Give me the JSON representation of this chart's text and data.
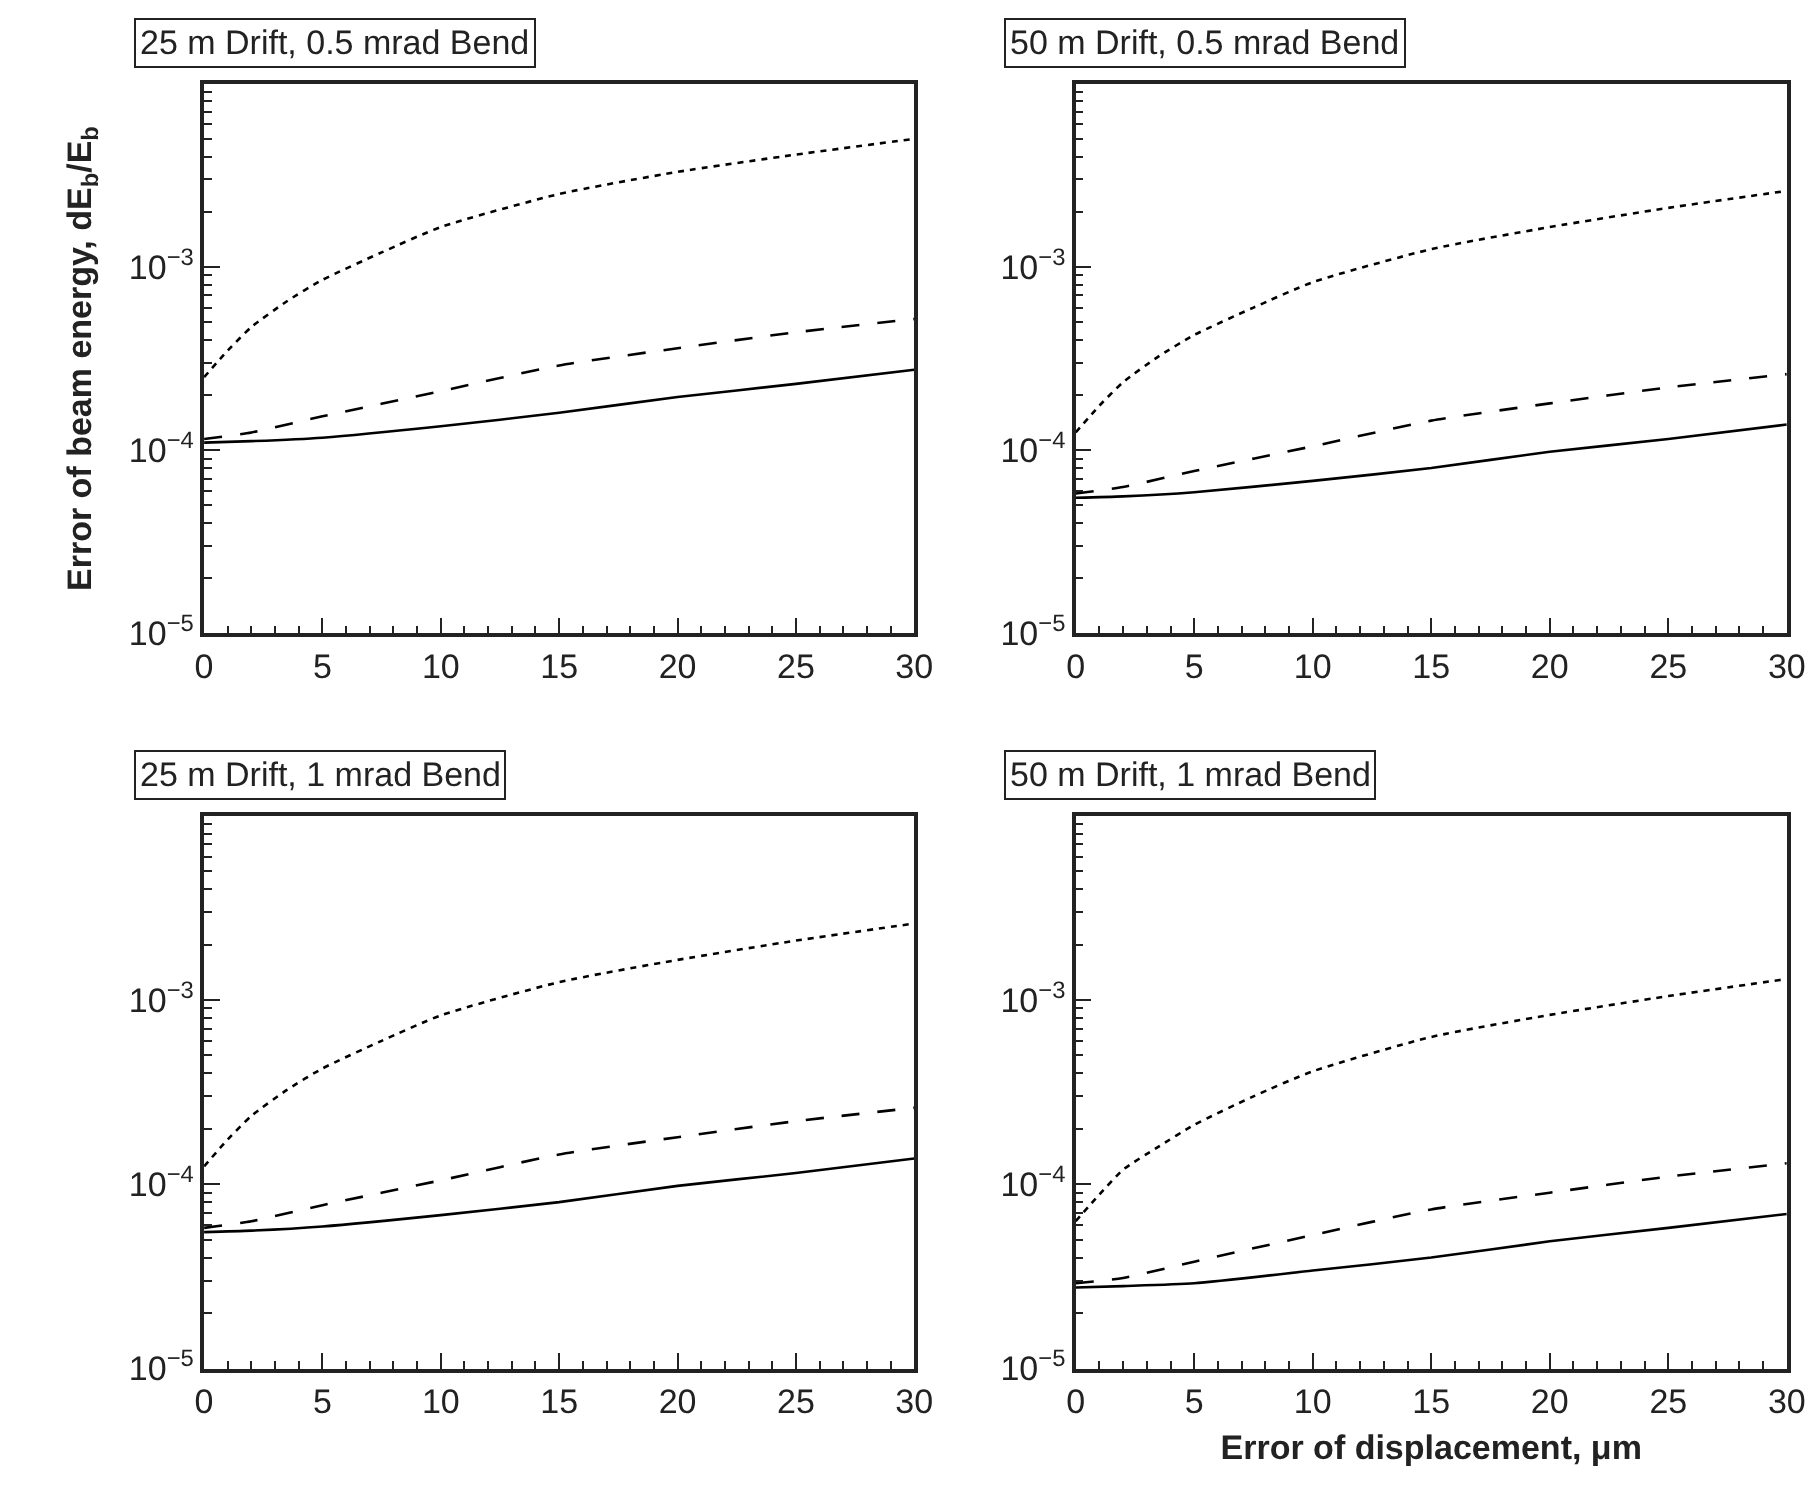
{
  "chart_data": [
    {
      "type": "line",
      "title": "25 m Drift, 0.5 mrad Bend",
      "ylabel": "Error of beam energy, dE$_{b}$/E$_{b}$",
      "log": "y",
      "marker": "none",
      "xlim": [
        0,
        30
      ],
      "ylim": [
        1e-05,
        0.01
      ],
      "xticks": [
        0,
        5,
        10,
        15,
        20,
        25,
        30
      ],
      "yticks": [
        {
          "value": 1e-05,
          "label": "10$^{−5}$"
        },
        {
          "value": 0.0001,
          "label": "10$^{−4}$"
        },
        {
          "value": 0.001,
          "label": "10$^{−3}$"
        }
      ],
      "series": [
        {
          "color": "#000000",
          "line_style": "dotted",
          "x": [
            0,
            1,
            2,
            3.5,
            5,
            7.5,
            10,
            15,
            20,
            25,
            30
          ],
          "values": [
            0.00025,
            0.00035,
            0.00047,
            0.00065,
            0.00085,
            0.0012,
            0.00165,
            0.0025,
            0.0033,
            0.0041,
            0.005
          ]
        },
        {
          "color": "#000000",
          "line_style": "dashed",
          "x": [
            0,
            2,
            5,
            10,
            15,
            20,
            25,
            30
          ],
          "values": [
            0.000115,
            0.000125,
            0.000153,
            0.00021,
            0.00029,
            0.00036,
            0.00044,
            0.00052
          ]
        },
        {
          "color": "#000000",
          "line_style": "solid",
          "x": [
            0,
            2,
            5,
            10,
            15,
            20,
            25,
            30
          ],
          "values": [
            0.00011,
            0.000112,
            0.000117,
            0.000135,
            0.00016,
            0.000195,
            0.00023,
            0.000275
          ]
        }
      ]
    },
    {
      "type": "line",
      "title": "50 m Drift, 0.5 mrad Bend",
      "log": "y",
      "marker": "none",
      "xlim": [
        0,
        30
      ],
      "ylim": [
        1e-05,
        0.01
      ],
      "xticks": [
        0,
        5,
        10,
        15,
        20,
        25,
        30
      ],
      "yticks": [
        {
          "value": 1e-05,
          "label": "10$^{−5}$"
        },
        {
          "value": 0.0001,
          "label": "10$^{−4}$"
        },
        {
          "value": 0.001,
          "label": "10$^{−3}$"
        }
      ],
      "series": [
        {
          "color": "#000000",
          "line_style": "dotted",
          "x": [
            0,
            1,
            2,
            3.5,
            5,
            7.5,
            10,
            15,
            20,
            25,
            30
          ],
          "values": [
            0.000125,
            0.000175,
            0.000235,
            0.000325,
            0.000425,
            0.0006,
            0.000825,
            0.00125,
            0.00165,
            0.0021,
            0.0026
          ]
        },
        {
          "color": "#000000",
          "line_style": "dashed",
          "x": [
            0,
            2,
            5,
            10,
            15,
            20,
            25,
            30
          ],
          "values": [
            5.8e-05,
            6.3e-05,
            7.7e-05,
            0.000105,
            0.000145,
            0.00018,
            0.00022,
            0.00026
          ]
        },
        {
          "color": "#000000",
          "line_style": "solid",
          "x": [
            0,
            2,
            5,
            10,
            15,
            20,
            25,
            30
          ],
          "values": [
            5.5e-05,
            5.6e-05,
            5.9e-05,
            6.8e-05,
            8e-05,
            9.8e-05,
            0.000115,
            0.000138
          ]
        }
      ]
    },
    {
      "type": "line",
      "title": "25 m Drift, 1 mrad Bend",
      "log": "y",
      "marker": "none",
      "xlim": [
        0,
        30
      ],
      "ylim": [
        1e-05,
        0.01
      ],
      "xticks": [
        0,
        5,
        10,
        15,
        20,
        25,
        30
      ],
      "yticks": [
        {
          "value": 1e-05,
          "label": "10$^{−5}$"
        },
        {
          "value": 0.0001,
          "label": "10$^{−4}$"
        },
        {
          "value": 0.001,
          "label": "10$^{−3}$"
        }
      ],
      "series": [
        {
          "color": "#000000",
          "line_style": "dotted",
          "x": [
            0,
            1,
            2,
            3.5,
            5,
            7.5,
            10,
            15,
            20,
            25,
            30
          ],
          "values": [
            0.000125,
            0.000175,
            0.000235,
            0.000325,
            0.000425,
            0.0006,
            0.000825,
            0.00125,
            0.00165,
            0.0021,
            0.0026
          ]
        },
        {
          "color": "#000000",
          "line_style": "dashed",
          "x": [
            0,
            2,
            5,
            10,
            15,
            20,
            25,
            30
          ],
          "values": [
            5.8e-05,
            6.3e-05,
            7.7e-05,
            0.000105,
            0.000145,
            0.00018,
            0.00022,
            0.00026
          ]
        },
        {
          "color": "#000000",
          "line_style": "solid",
          "x": [
            0,
            2,
            5,
            10,
            15,
            20,
            25,
            30
          ],
          "values": [
            5.5e-05,
            5.6e-05,
            5.9e-05,
            6.8e-05,
            8e-05,
            9.8e-05,
            0.000115,
            0.000138
          ]
        }
      ]
    },
    {
      "type": "line",
      "title": "50 m Drift, 1 mrad Bend",
      "xlabel": "Error of displacement, μm",
      "log": "y",
      "marker": "none",
      "xlim": [
        0,
        30
      ],
      "ylim": [
        1e-05,
        0.01
      ],
      "xticks": [
        0,
        5,
        10,
        15,
        20,
        25,
        30
      ],
      "yticks": [
        {
          "value": 1e-05,
          "label": "10$^{−5}$"
        },
        {
          "value": 0.0001,
          "label": "10$^{−4}$"
        },
        {
          "value": 0.001,
          "label": "10$^{−3}$"
        }
      ],
      "series": [
        {
          "color": "#000000",
          "line_style": "dotted",
          "x": [
            0,
            1,
            2,
            3.5,
            5,
            7.5,
            10,
            15,
            20,
            25,
            30
          ],
          "values": [
            6.3e-05,
            8.8e-05,
            0.00012,
            0.00016,
            0.00021,
            0.0003,
            0.00041,
            0.00063,
            0.00083,
            0.00105,
            0.0013
          ]
        },
        {
          "color": "#000000",
          "line_style": "dashed",
          "x": [
            0,
            2,
            5,
            10,
            15,
            20,
            25,
            30
          ],
          "values": [
            2.9e-05,
            3.1e-05,
            3.8e-05,
            5.3e-05,
            7.3e-05,
            9e-05,
            0.00011,
            0.00013
          ]
        },
        {
          "color": "#000000",
          "line_style": "solid",
          "x": [
            0,
            2,
            5,
            10,
            15,
            20,
            25,
            30
          ],
          "values": [
            2.75e-05,
            2.8e-05,
            2.9e-05,
            3.4e-05,
            4e-05,
            4.9e-05,
            5.8e-05,
            6.9e-05
          ]
        }
      ]
    }
  ]
}
